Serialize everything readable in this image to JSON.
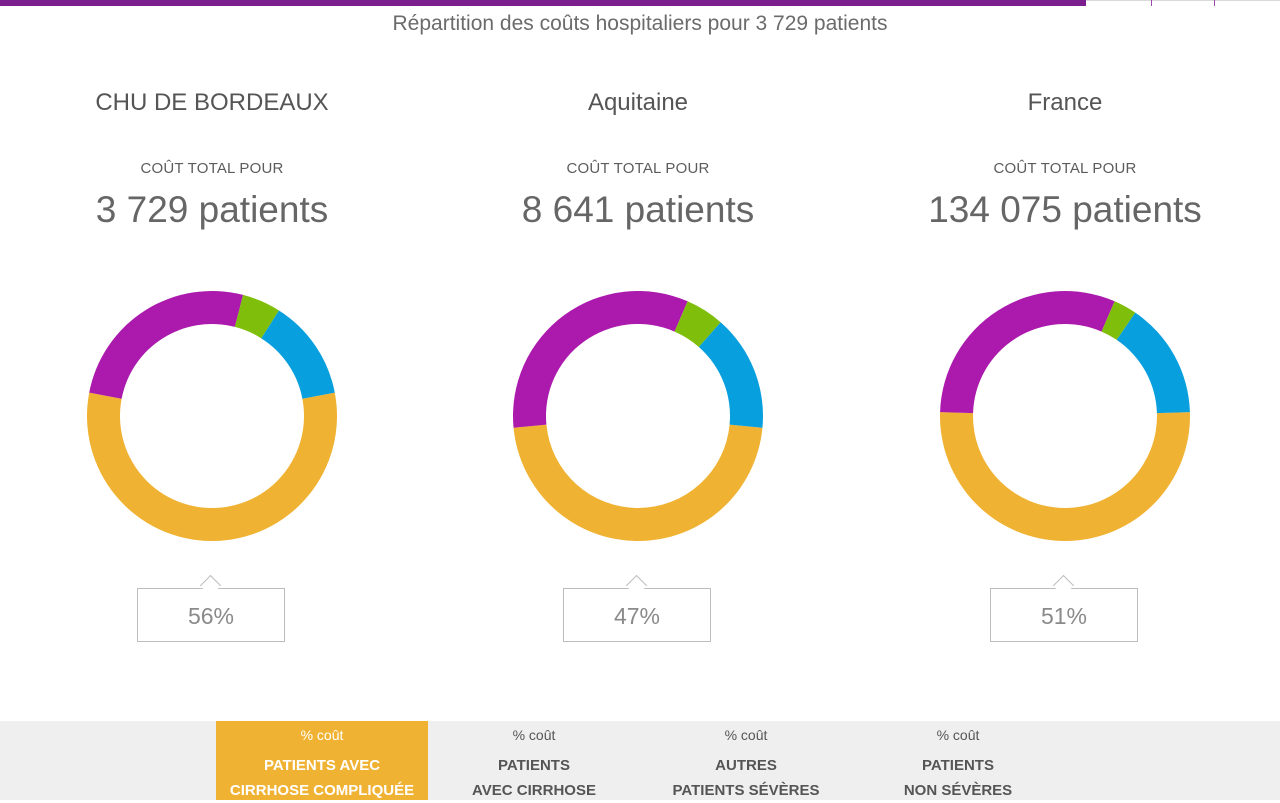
{
  "subtitle": "Répartition des coûts hospitaliers pour 3 729 patients",
  "columns": [
    {
      "title": "CHU DE BORDEAUX",
      "caption": "COÛT TOTAL POUR",
      "total": "3 729 patients",
      "callout": "56%"
    },
    {
      "title": "Aquitaine",
      "caption": "COÛT TOTAL POUR",
      "total": "8 641 patients",
      "callout": "47%"
    },
    {
      "title": "France",
      "caption": "COÛT TOTAL POUR",
      "total": "134 075 patients",
      "callout": "51%"
    }
  ],
  "legend": [
    {
      "small": "% coût",
      "label": "PATIENTS AVEC\nCIRRHOSE COMPLIQUÉE",
      "active": true
    },
    {
      "small": "% coût",
      "label": "PATIENTS\nAVEC CIRRHOSE",
      "active": false
    },
    {
      "small": "% coût",
      "label": "AUTRES\nPATIENTS SÉVÈRES",
      "active": false
    },
    {
      "small": "% coût",
      "label": "PATIENTS\nNON SÉVÈRES",
      "active": false
    }
  ],
  "colors": {
    "cirrhose_compliquee": "#f0b232",
    "avec_cirrhose": "#ab1aac",
    "autres_severes": "#089fde",
    "non_severes": "#80be0c",
    "topbar": "#7b1e8e"
  },
  "chart_data": [
    {
      "type": "pie",
      "title": "CHU DE BORDEAUX",
      "categories": [
        "PATIENTS AVEC CIRRHOSE COMPLIQUÉE",
        "PATIENTS AVEC CIRRHOSE",
        "PATIENTS NON SÉVÈRES",
        "AUTRES PATIENTS SÉVÈRES"
      ],
      "values": [
        56,
        26,
        5,
        13
      ],
      "highlighted": "56%"
    },
    {
      "type": "pie",
      "title": "Aquitaine",
      "categories": [
        "PATIENTS AVEC CIRRHOSE COMPLIQUÉE",
        "PATIENTS AVEC CIRRHOSE",
        "PATIENTS NON SÉVÈRES",
        "AUTRES PATIENTS SÉVÈRES"
      ],
      "values": [
        47,
        33,
        5,
        15
      ],
      "highlighted": "47%"
    },
    {
      "type": "pie",
      "title": "France",
      "categories": [
        "PATIENTS AVEC CIRRHOSE COMPLIQUÉE",
        "PATIENTS AVEC CIRRHOSE",
        "PATIENTS NON SÉVÈRES",
        "AUTRES PATIENTS SÉVÈRES"
      ],
      "values": [
        51,
        31,
        3,
        15
      ],
      "highlighted": "51%"
    }
  ]
}
